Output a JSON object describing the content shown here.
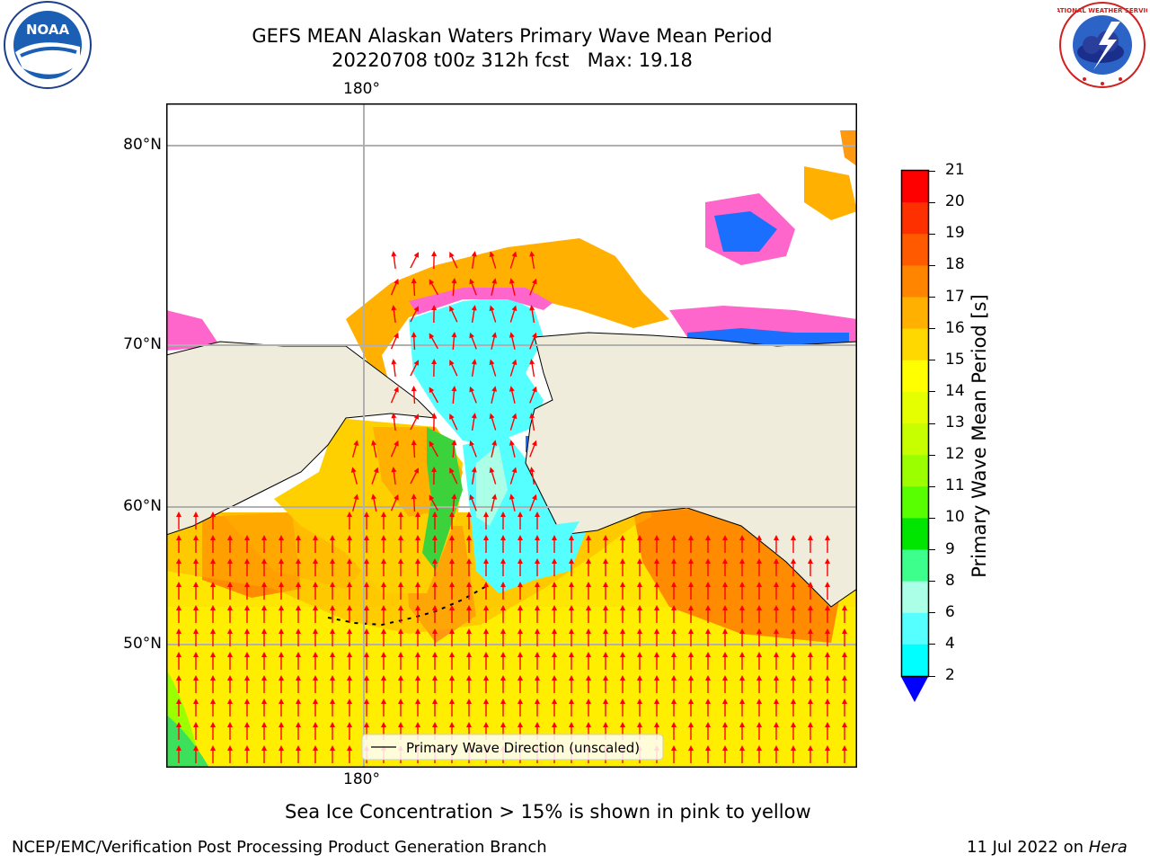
{
  "title": {
    "line1": "GEFS MEAN Alaskan Waters Primary Wave Mean Period",
    "line2": "20220708 t00z 312h fcst   Max: 19.18"
  },
  "map": {
    "lon_label_top": "180°",
    "lon_label_bottom": "180°",
    "lat_labels": [
      "80°N",
      "70°N",
      "60°N",
      "50°N"
    ],
    "legend_label": "Primary Wave Direction (unscaled)",
    "land_color": "#efecdc",
    "grid_color": "#b0b0b0"
  },
  "colorbar": {
    "label": "Primary Wave Mean Period [s]",
    "ticks": [
      "21",
      "20",
      "19",
      "18",
      "17",
      "16",
      "15",
      "14",
      "13",
      "12",
      "11",
      "10",
      "9",
      "8",
      "6",
      "4",
      "2"
    ],
    "colors": [
      "#ff0000",
      "#ff3000",
      "#ff5a00",
      "#ff8400",
      "#ffb000",
      "#ffd800",
      "#ffff00",
      "#e6ff00",
      "#c8ff00",
      "#9cff00",
      "#58ff00",
      "#00e600",
      "#3cff8c",
      "#aaffe6",
      "#55ffff",
      "#00ffff",
      "#0080ff"
    ],
    "extend_color": "#0000ff"
  },
  "caption": "Sea Ice Concentration > 15% is shown in pink to yellow",
  "footer": {
    "left": "NCEP/EMC/Verification Post Processing Product Generation Branch",
    "date": "11 Jul 2022 on ",
    "machine": "Hera"
  },
  "logos": {
    "noaa_text": "NOAA",
    "nws_text": "NATIONAL WEATHER SERVICE"
  }
}
